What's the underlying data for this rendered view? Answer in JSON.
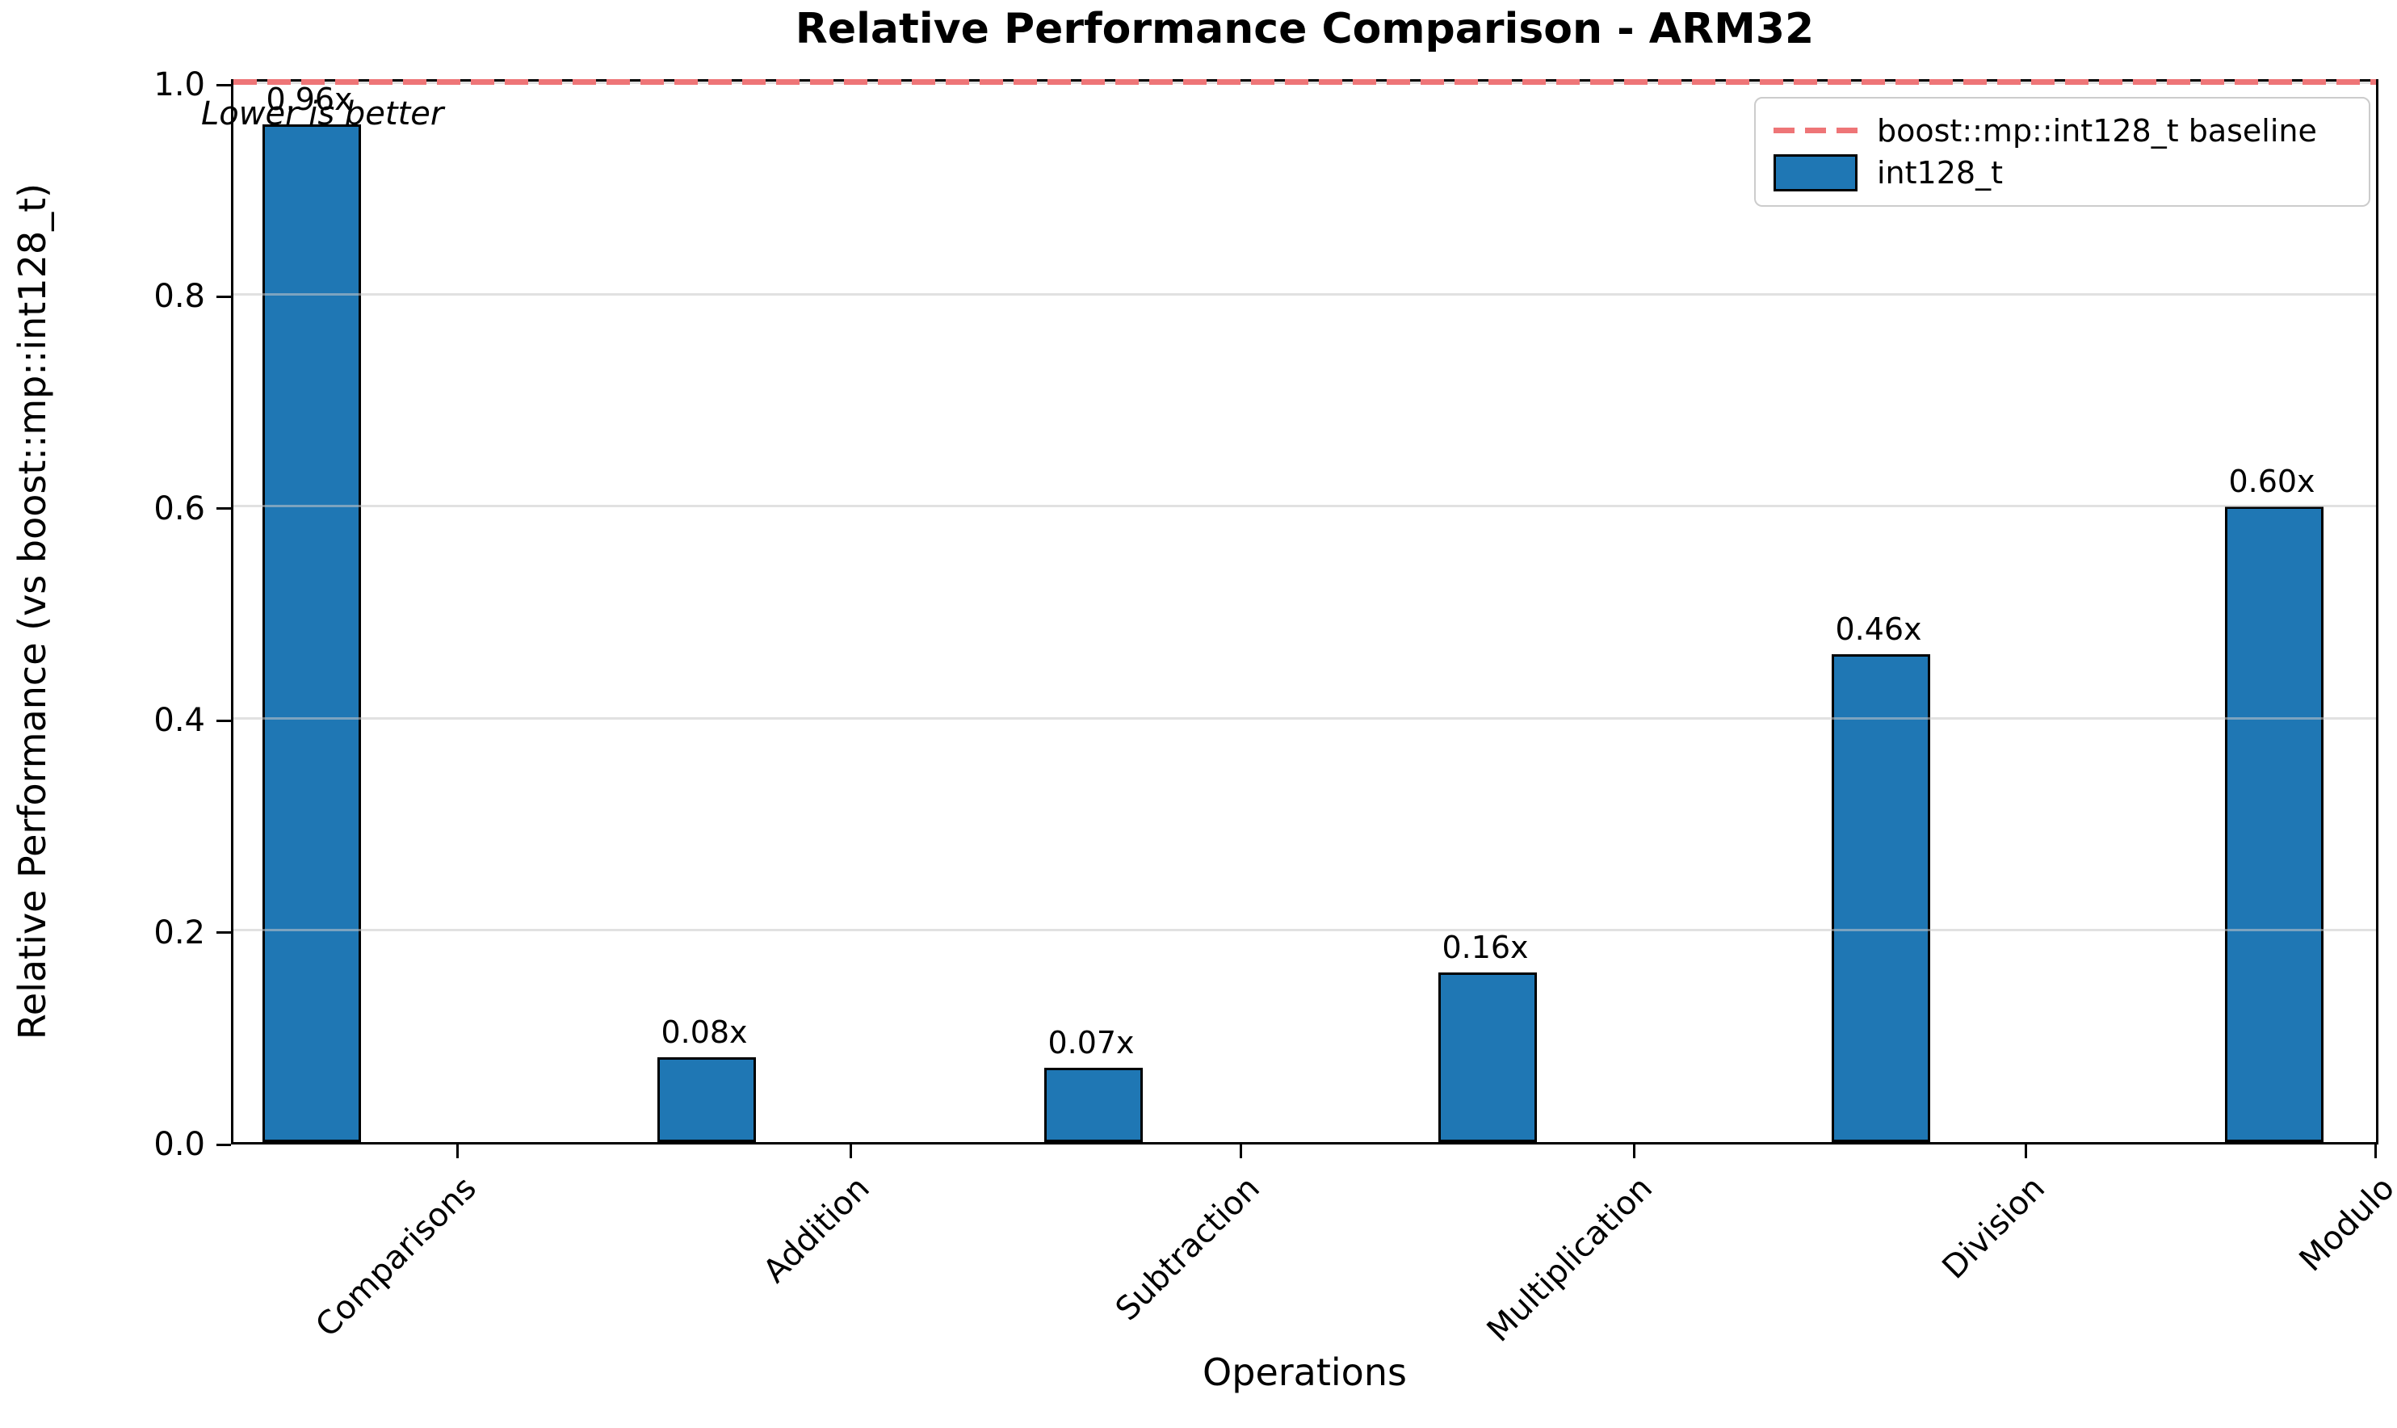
{
  "chart_data": {
    "type": "bar",
    "title": "Relative Performance Comparison - ARM32",
    "xlabel": "Operations",
    "ylabel": "Relative Performance (vs boost::mp::int128_t)",
    "categories": [
      "Comparisons",
      "Addition",
      "Subtraction",
      "Multiplication",
      "Division",
      "Modulo"
    ],
    "series": [
      {
        "name": "int128_t",
        "values": [
          0.96,
          0.08,
          0.07,
          0.16,
          0.46,
          0.6
        ]
      }
    ],
    "value_labels": [
      "0.96x",
      "0.08x",
      "0.07x",
      "0.16x",
      "0.46x",
      "0.60x"
    ],
    "yticks": [
      0.0,
      0.2,
      0.4,
      0.6,
      0.8,
      1.0
    ],
    "ytick_labels": [
      "0.0",
      "0.2",
      "0.4",
      "0.6",
      "0.8",
      "1.0"
    ],
    "ylim": [
      0.0,
      1.005
    ],
    "grid": true,
    "baseline": {
      "value": 1.0,
      "label": "boost::mp::int128_t baseline"
    },
    "annotation": "Lower is better",
    "legend_position": "upper right",
    "colors": {
      "bar_fill": "#1f77b4",
      "bar_edge": "#000000",
      "baseline_dash": "#ee7577",
      "grid_line": "#c8c8c8"
    }
  }
}
